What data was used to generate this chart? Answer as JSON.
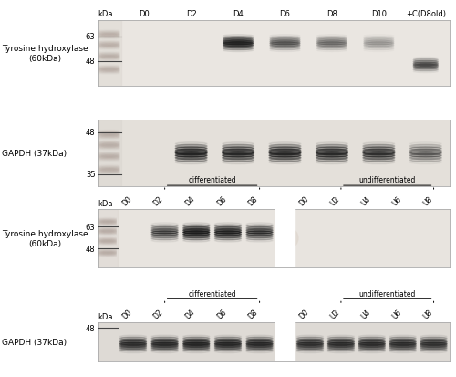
{
  "top_th_label": "Tyrosine hydroxylase\n(60kDa)",
  "top_gapdh_label": "GAPDH (37kDa)",
  "top_lanes": [
    "D0",
    "D2",
    "D4",
    "D6",
    "D8",
    "D10",
    "+C(D8old)"
  ],
  "bottom_th_label": "Tyrosine hydroxylase\n(60kDa)",
  "bottom_gapdh_label": "GAPDH (37kDa)",
  "bottom_lanes_diff": [
    "D0",
    "D2",
    "D4",
    "D6",
    "D8"
  ],
  "bottom_lanes_undiff": [
    "D0",
    "U2",
    "U4",
    "U6",
    "U8"
  ],
  "differentiated_label": "differentiated",
  "undifferentiated_label": "undifferentiated",
  "panel_bg_light": "#e8e4e0",
  "panel_bg_lighter": "#ede9e5",
  "band_dark": "#1a1a1a",
  "marker_smear": "#c0b8b0"
}
